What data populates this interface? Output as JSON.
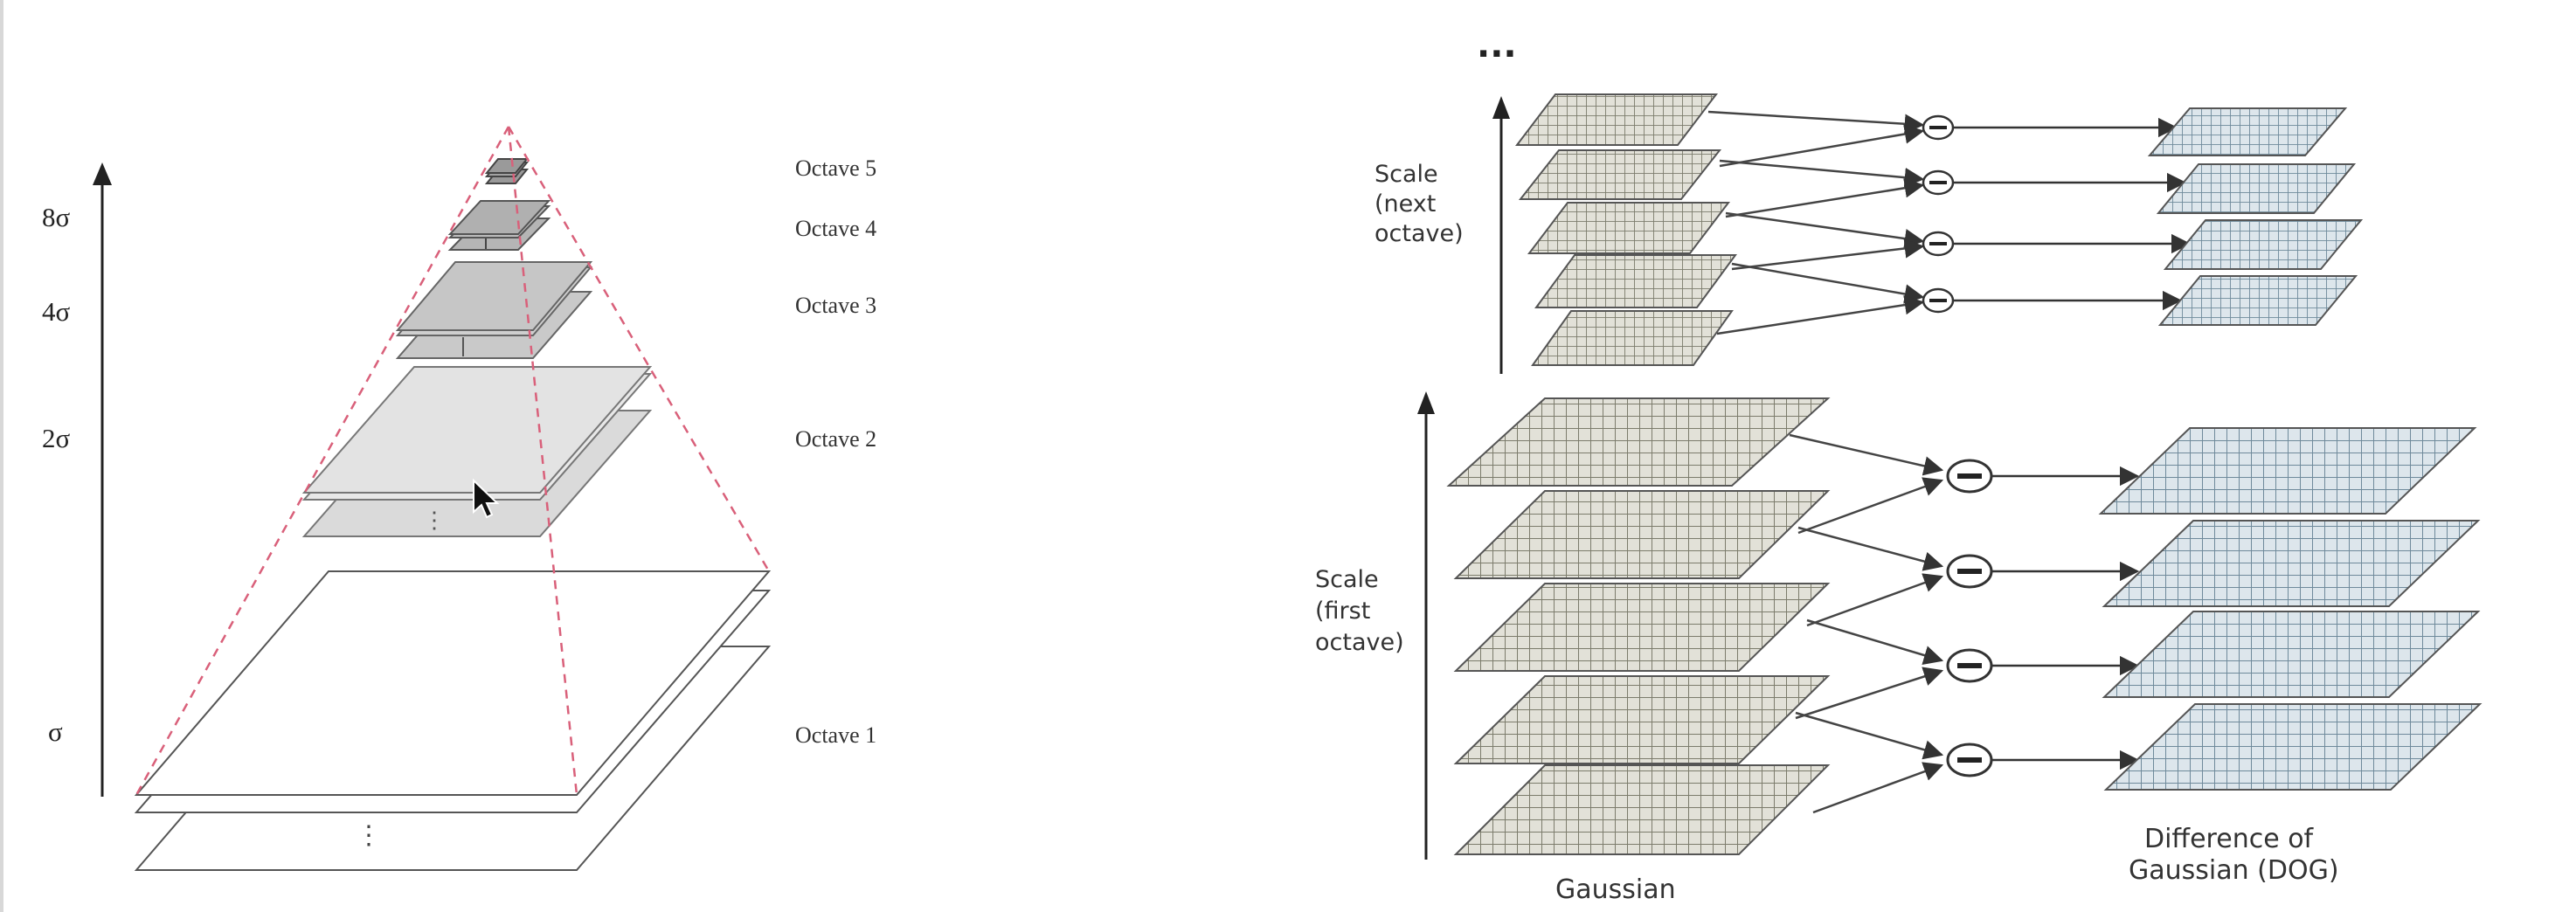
{
  "left_panel": {
    "scale_labels": [
      "8σ",
      "4σ",
      "2σ",
      "σ"
    ],
    "octave_labels": [
      "Octave 5",
      "Octave 4",
      "Octave 3",
      "Octave 2",
      "Octave 1"
    ],
    "colors": {
      "pyramid_dash": "#d9607a",
      "layer_gray": "#bdbdbd",
      "layer_light": "#dedede",
      "layer_white": "#ffffff"
    }
  },
  "right_panel": {
    "ellipsis": "...",
    "next_octave_label": [
      "Scale",
      "(next",
      "octave)"
    ],
    "first_octave_label": [
      "Scale",
      "(first",
      "octave)"
    ],
    "minus_symbol": "−",
    "gaussian_label": "Gaussian",
    "dog_label": [
      "Difference of",
      "Gaussian (DOG)"
    ],
    "colors": {
      "gaussian_grid": "#8b8b7a",
      "dog_grid": "#7f97a6",
      "arrow": "#333333"
    }
  }
}
